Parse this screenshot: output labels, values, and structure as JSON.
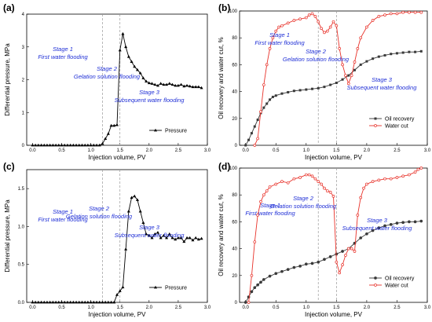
{
  "chart_data": [
    {
      "type": "line",
      "panel_label": "(a)",
      "xlabel": "Injection volume, PV",
      "ylabel": "Differential pressure, MPa",
      "xlim": [
        -0.1,
        3.0
      ],
      "ylim": [
        0,
        4
      ],
      "xticks": [
        "0.0",
        "0.5",
        "1.0",
        "1.5",
        "2.0",
        "2.5",
        "3.0"
      ],
      "yticks": [
        "0",
        "1",
        "2",
        "3",
        "4"
      ],
      "stage_lines": [
        1.2,
        1.5
      ],
      "stages": [
        {
          "lines": [
            "Stage 1",
            "First water flooding"
          ]
        },
        {
          "lines": [
            "Stage 2",
            "Gelation solution flooding"
          ]
        },
        {
          "lines": [
            "Stage 3",
            "Subsequent water flooding"
          ]
        }
      ],
      "legend_position": "bottom-right",
      "series": [
        {
          "name": "Pressure",
          "color": "#000000",
          "marker": "triangle",
          "x": [
            0.0,
            0.05,
            0.1,
            0.15,
            0.2,
            0.25,
            0.3,
            0.35,
            0.4,
            0.45,
            0.5,
            0.55,
            0.6,
            0.65,
            0.7,
            0.75,
            0.8,
            0.85,
            0.9,
            0.95,
            1.0,
            1.05,
            1.1,
            1.15,
            1.2,
            1.25,
            1.3,
            1.35,
            1.4,
            1.45,
            1.5,
            1.55,
            1.6,
            1.65,
            1.7,
            1.75,
            1.8,
            1.85,
            1.9,
            1.95,
            2.0,
            2.05,
            2.1,
            2.15,
            2.2,
            2.25,
            2.3,
            2.35,
            2.4,
            2.45,
            2.5,
            2.55,
            2.6,
            2.65,
            2.7,
            2.75,
            2.8,
            2.85,
            2.9
          ],
          "y": [
            0,
            0,
            0,
            0,
            0,
            0,
            0,
            0,
            0,
            0,
            0,
            0,
            0,
            0,
            0,
            0,
            0,
            0,
            0,
            0,
            0,
            0,
            0,
            0,
            0.05,
            0.2,
            0.35,
            0.6,
            0.6,
            0.62,
            2.9,
            3.4,
            3.0,
            2.7,
            2.55,
            2.4,
            2.3,
            2.2,
            2.05,
            1.95,
            1.9,
            1.88,
            1.85,
            1.82,
            1.88,
            1.85,
            1.85,
            1.88,
            1.85,
            1.82,
            1.82,
            1.85,
            1.8,
            1.82,
            1.8,
            1.78,
            1.78,
            1.78,
            1.75
          ]
        }
      ]
    },
    {
      "type": "line",
      "panel_label": "(b)",
      "xlabel": "Injection volume, PV",
      "ylabel": "Oil recovery and water cut, %",
      "xlim": [
        -0.1,
        3.0
      ],
      "ylim": [
        0,
        100
      ],
      "xticks": [
        "0.0",
        "0.5",
        "1.0",
        "1.5",
        "2.0",
        "2.5",
        "3.0"
      ],
      "yticks": [
        "0",
        "20",
        "40",
        "60",
        "80",
        "100"
      ],
      "stage_lines": [
        1.2,
        1.5
      ],
      "stages": [
        {
          "lines": [
            "Stage 1",
            "First water flooding"
          ]
        },
        {
          "lines": [
            "Stage 2",
            "Gelation solution flooding"
          ]
        },
        {
          "lines": [
            "Stage 3",
            "Subsequent water flooding"
          ]
        }
      ],
      "legend_position": "bottom-right",
      "series": [
        {
          "name": "Oil recovery",
          "color": "#3a3a3a",
          "marker": "square",
          "x": [
            0.0,
            0.05,
            0.1,
            0.15,
            0.2,
            0.25,
            0.3,
            0.35,
            0.4,
            0.45,
            0.5,
            0.6,
            0.7,
            0.8,
            0.9,
            1.0,
            1.1,
            1.2,
            1.3,
            1.4,
            1.5,
            1.6,
            1.7,
            1.8,
            1.9,
            2.0,
            2.1,
            2.2,
            2.3,
            2.4,
            2.5,
            2.6,
            2.7,
            2.8,
            2.9
          ],
          "y": [
            0,
            4,
            9,
            14,
            19,
            24,
            28,
            31,
            34,
            36,
            37,
            38.5,
            39.5,
            40.5,
            41,
            41.5,
            42,
            42.5,
            43.5,
            45,
            46.5,
            49,
            52,
            56,
            60,
            62.5,
            64.5,
            66,
            67,
            68,
            68.5,
            69,
            69.5,
            69.5,
            70
          ]
        },
        {
          "name": "Water cut",
          "color": "#e8322a",
          "marker": "circle",
          "x": [
            0.15,
            0.2,
            0.25,
            0.3,
            0.35,
            0.4,
            0.45,
            0.5,
            0.55,
            0.6,
            0.7,
            0.8,
            0.9,
            1.0,
            1.05,
            1.1,
            1.15,
            1.2,
            1.25,
            1.3,
            1.35,
            1.4,
            1.45,
            1.5,
            1.55,
            1.6,
            1.65,
            1.7,
            1.75,
            1.8,
            1.85,
            1.9,
            2.0,
            2.1,
            2.2,
            2.3,
            2.4,
            2.5,
            2.6,
            2.7,
            2.8,
            2.9
          ],
          "y": [
            0,
            5,
            25,
            45,
            60,
            72,
            80,
            85,
            88,
            89,
            91,
            93,
            94,
            95,
            97,
            98,
            96,
            92,
            87,
            84,
            85,
            88,
            92,
            89,
            72,
            60,
            52,
            46,
            52,
            62,
            72,
            80,
            88,
            93,
            96,
            97,
            98,
            98,
            99,
            99,
            99,
            99
          ]
        }
      ]
    },
    {
      "type": "line",
      "panel_label": "(c)",
      "xlabel": "Injection volume, PV",
      "ylabel": "Differential pressure, MPa",
      "xlim": [
        -0.1,
        3.0
      ],
      "ylim": [
        0,
        1.75
      ],
      "xticks": [
        "0.0",
        "0.5",
        "1.0",
        "1.5",
        "2.0",
        "2.5",
        "3.0"
      ],
      "yticks": [
        "0.0",
        "0.5",
        "1.0",
        "1.5"
      ],
      "stage_lines": [
        1.2,
        1.5
      ],
      "stages": [
        {
          "lines": [
            "Stage 1",
            "First water flooding"
          ]
        },
        {
          "lines": [
            "Stage 2",
            "Gelation solution flooding"
          ]
        },
        {
          "lines": [
            "Stage 3",
            "Subsequent water flooding"
          ]
        }
      ],
      "legend_position": "bottom-right",
      "series": [
        {
          "name": "Pressure",
          "color": "#000000",
          "marker": "triangle",
          "x": [
            0.0,
            0.05,
            0.1,
            0.15,
            0.2,
            0.25,
            0.3,
            0.35,
            0.4,
            0.45,
            0.5,
            0.55,
            0.6,
            0.65,
            0.7,
            0.75,
            0.8,
            0.85,
            0.9,
            0.95,
            1.0,
            1.05,
            1.1,
            1.15,
            1.2,
            1.25,
            1.3,
            1.35,
            1.4,
            1.45,
            1.5,
            1.55,
            1.6,
            1.65,
            1.7,
            1.75,
            1.8,
            1.85,
            1.9,
            1.95,
            2.0,
            2.05,
            2.1,
            2.15,
            2.2,
            2.25,
            2.3,
            2.35,
            2.4,
            2.45,
            2.5,
            2.55,
            2.6,
            2.65,
            2.7,
            2.75,
            2.8,
            2.85,
            2.9
          ],
          "y": [
            0,
            0,
            0,
            0,
            0,
            0,
            0,
            0,
            0,
            0,
            0,
            0,
            0,
            0,
            0,
            0,
            0,
            0,
            0,
            0,
            0,
            0,
            0,
            0,
            0,
            0,
            0,
            0,
            0,
            0.1,
            0.15,
            0.2,
            0.7,
            1.2,
            1.38,
            1.4,
            1.35,
            1.2,
            1.05,
            0.9,
            0.88,
            0.85,
            0.9,
            0.92,
            0.85,
            0.88,
            0.85,
            0.9,
            0.85,
            0.83,
            0.85,
            0.85,
            0.8,
            0.85,
            0.85,
            0.82,
            0.85,
            0.83,
            0.84
          ]
        }
      ]
    },
    {
      "type": "line",
      "panel_label": "(d)",
      "xlabel": "Injection volume, PV",
      "ylabel": "Oil recovery and water cut, %",
      "xlim": [
        -0.1,
        3.0
      ],
      "ylim": [
        0,
        100
      ],
      "xticks": [
        "0.0",
        "0.5",
        "1.0",
        "1.5",
        "2.0",
        "2.5",
        "3.0"
      ],
      "yticks": [
        "0",
        "20",
        "40",
        "60",
        "80",
        "100"
      ],
      "stage_lines": [
        1.2,
        1.5
      ],
      "stages": [
        {
          "lines": [
            "Stage 1",
            "First water flooding"
          ]
        },
        {
          "lines": [
            "Stage 2",
            "Gelation solution flooding"
          ]
        },
        {
          "lines": [
            "Stage 3",
            "Subsequent water flooding"
          ]
        }
      ],
      "legend_position": "bottom-right",
      "series": [
        {
          "name": "Oil recovery",
          "color": "#3a3a3a",
          "marker": "circle",
          "x": [
            0.0,
            0.05,
            0.1,
            0.15,
            0.2,
            0.25,
            0.3,
            0.4,
            0.5,
            0.6,
            0.7,
            0.8,
            0.9,
            1.0,
            1.1,
            1.2,
            1.3,
            1.4,
            1.5,
            1.6,
            1.7,
            1.8,
            1.9,
            2.0,
            2.1,
            2.2,
            2.3,
            2.4,
            2.5,
            2.6,
            2.7,
            2.8,
            2.9
          ],
          "y": [
            0,
            4,
            8,
            11,
            13,
            15,
            17,
            19.5,
            21.5,
            23,
            24.5,
            26,
            27,
            28.5,
            29,
            30,
            32,
            34,
            36,
            38,
            40,
            44,
            48,
            51,
            53.5,
            55.5,
            57,
            58,
            59,
            59.5,
            60,
            60,
            60.5
          ]
        },
        {
          "name": "Water cut",
          "color": "#e8322a",
          "marker": "circle",
          "x": [
            0.05,
            0.1,
            0.15,
            0.2,
            0.25,
            0.3,
            0.35,
            0.4,
            0.5,
            0.6,
            0.7,
            0.8,
            0.9,
            1.0,
            1.05,
            1.1,
            1.15,
            1.2,
            1.25,
            1.3,
            1.35,
            1.4,
            1.45,
            1.5,
            1.55,
            1.6,
            1.65,
            1.7,
            1.75,
            1.8,
            1.85,
            1.9,
            1.95,
            2.0,
            2.1,
            2.2,
            2.3,
            2.4,
            2.5,
            2.6,
            2.7,
            2.8,
            2.85,
            2.9
          ],
          "y": [
            0,
            20,
            45,
            65,
            75,
            80,
            83,
            86,
            88,
            90,
            89,
            92,
            93,
            95,
            95,
            94,
            92,
            90,
            88,
            85,
            83,
            82,
            79,
            30,
            22,
            28,
            35,
            40,
            40,
            38,
            65,
            78,
            85,
            88,
            90,
            91,
            92,
            92,
            93,
            94,
            95,
            97,
            99,
            100
          ]
        }
      ]
    }
  ]
}
